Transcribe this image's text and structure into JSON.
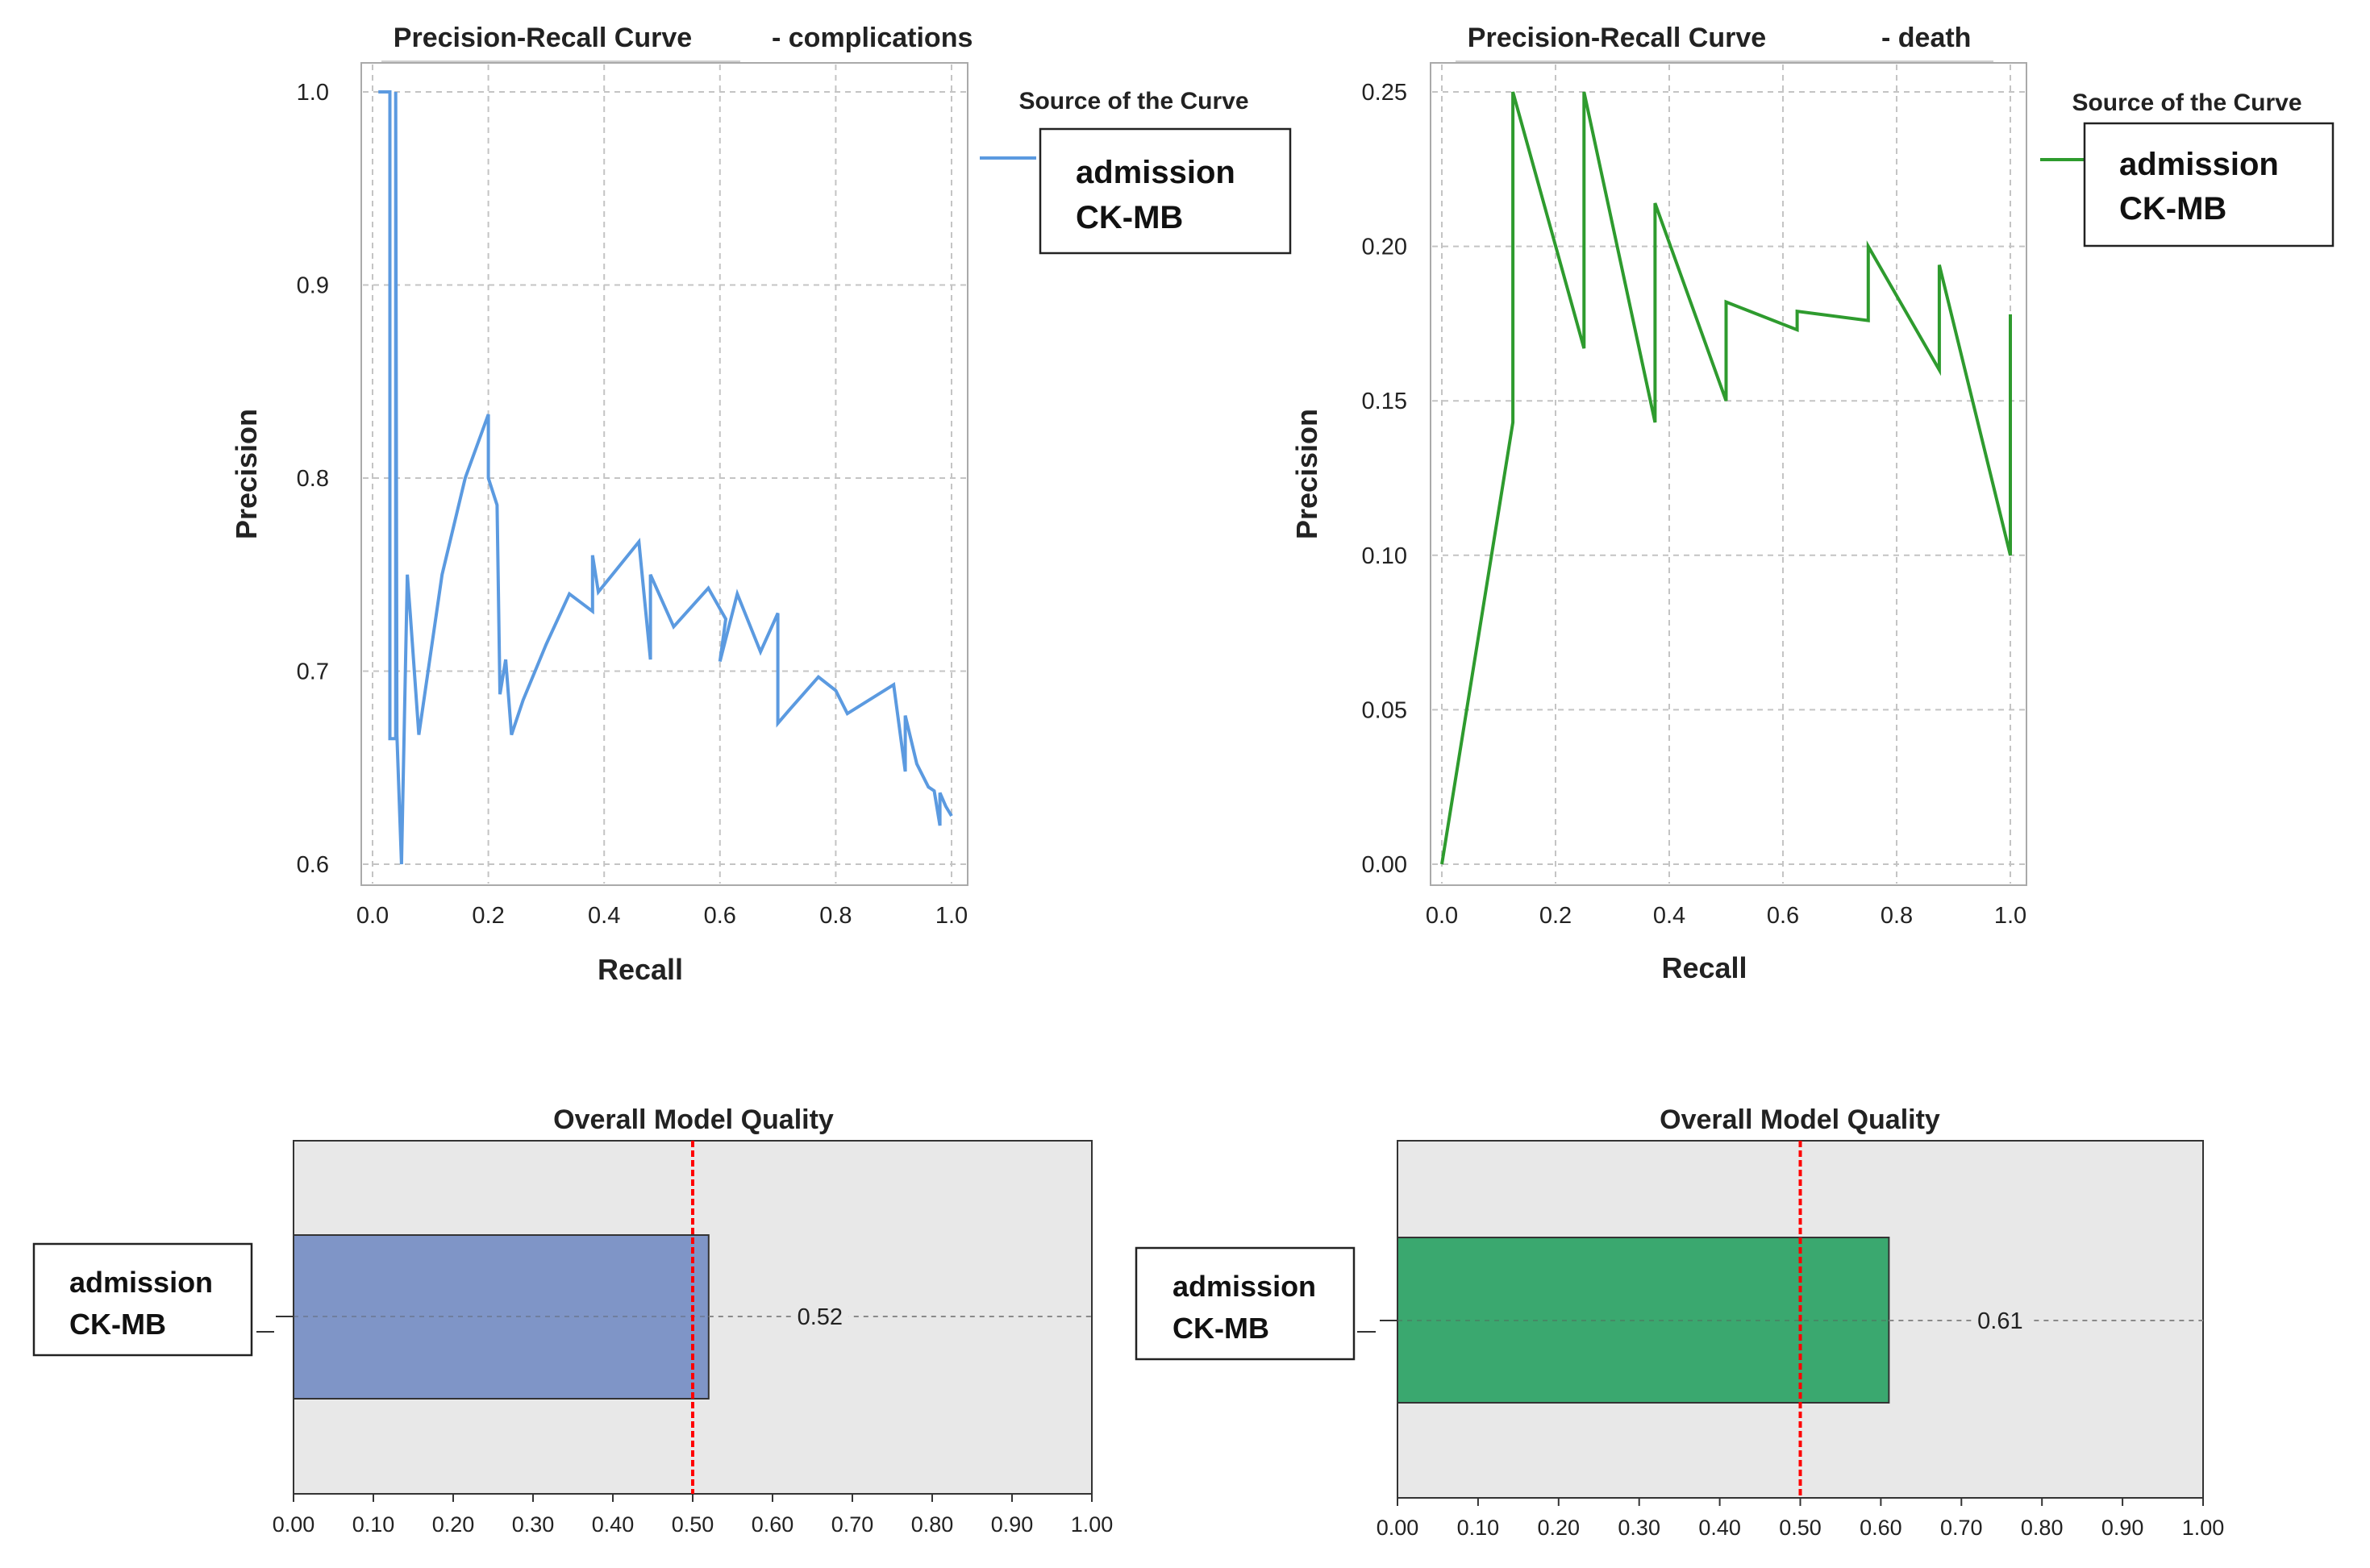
{
  "chart_data": [
    {
      "type": "line",
      "title": "Precision-Recall Curve",
      "subtitle": "- complications",
      "xlabel": "Recall",
      "ylabel": "Precision",
      "xlim": [
        0,
        1
      ],
      "ylim": [
        0.6,
        1
      ],
      "xticks": [
        "0.0",
        "0.2",
        "0.4",
        "0.6",
        "0.8",
        "1.0"
      ],
      "yticks": [
        "0.6",
        "0.7",
        "0.8",
        "0.9",
        "1.0"
      ],
      "grid": true,
      "legend": {
        "title": "Source of the Curve",
        "entries": [
          "admission",
          "CK-MB"
        ],
        "position": "top-right"
      },
      "color": "#5b9ae0",
      "series": [
        {
          "name": "admission CK-MB",
          "x": [
            0.01,
            0.03,
            0.03,
            0.04,
            0.04,
            0.042,
            0.05,
            0.06,
            0.065,
            0.08,
            0.12,
            0.16,
            0.2,
            0.2,
            0.215,
            0.22,
            0.23,
            0.24,
            0.26,
            0.3,
            0.34,
            0.38,
            0.38,
            0.39,
            0.46,
            0.48,
            0.48,
            0.52,
            0.58,
            0.61,
            0.6,
            0.63,
            0.67,
            0.7,
            0.7,
            0.72,
            0.77,
            0.8,
            0.82,
            0.9,
            0.92,
            0.92,
            0.94,
            0.96,
            0.97,
            0.98,
            0.98,
            0.99,
            1.0
          ],
          "y": [
            1.0,
            1.0,
            0.665,
            0.665,
            1.0,
            0.667,
            0.6,
            0.75,
            0.73,
            0.667,
            0.75,
            0.8,
            0.833,
            0.8,
            0.786,
            0.688,
            0.706,
            0.667,
            0.685,
            0.714,
            0.74,
            0.731,
            0.76,
            0.741,
            0.767,
            0.706,
            0.75,
            0.723,
            0.743,
            0.727,
            0.705,
            0.74,
            0.71,
            0.73,
            0.673,
            0.68,
            0.697,
            0.69,
            0.678,
            0.693,
            0.648,
            0.677,
            0.652,
            0.64,
            0.638,
            0.62,
            0.637,
            0.63,
            0.625
          ]
        }
      ]
    },
    {
      "type": "line",
      "title": "Precision-Recall Curve",
      "subtitle": "- death",
      "xlabel": "Recall",
      "ylabel": "Precision",
      "xlim": [
        0,
        1
      ],
      "ylim": [
        0,
        0.25
      ],
      "xticks": [
        "0.0",
        "0.2",
        "0.4",
        "0.6",
        "0.8",
        "1.0"
      ],
      "yticks": [
        "0.00",
        "0.05",
        "0.10",
        "0.15",
        "0.20",
        "0.25"
      ],
      "grid": true,
      "legend": {
        "title": "Source of the Curve",
        "entries": [
          "admission",
          "CK-MB"
        ],
        "position": "top-right"
      },
      "color": "#2e9b2e",
      "series": [
        {
          "name": "admission CK-MB",
          "x": [
            0.0,
            0.125,
            0.125,
            0.25,
            0.25,
            0.375,
            0.375,
            0.5,
            0.5,
            0.625,
            0.625,
            0.75,
            0.75,
            0.875,
            0.875,
            1.0,
            1.0
          ],
          "y": [
            0.0,
            0.143,
            0.25,
            0.167,
            0.25,
            0.143,
            0.214,
            0.15,
            0.182,
            0.173,
            0.179,
            0.176,
            0.2,
            0.16,
            0.194,
            0.1,
            0.178
          ]
        }
      ]
    },
    {
      "type": "bar",
      "orientation": "horizontal",
      "title": "Overall Model Quality",
      "categories": [
        "admission CK-MB"
      ],
      "category_label": [
        "admission",
        "CK-MB"
      ],
      "values": [
        0.52
      ],
      "value_label": "0.52",
      "reference_line": 0.5,
      "xlim": [
        0,
        1
      ],
      "xticks": [
        "0.00",
        "0.10",
        "0.20",
        "0.30",
        "0.40",
        "0.50",
        "0.60",
        "0.70",
        "0.80",
        "0.90",
        "1.00"
      ],
      "bar_color": "#7f95c7",
      "background": "#e8e8e8",
      "reference_color": "#ff0000"
    },
    {
      "type": "bar",
      "orientation": "horizontal",
      "title": "Overall Model Quality",
      "categories": [
        "admission CK-MB"
      ],
      "category_label": [
        "admission",
        "CK-MB"
      ],
      "values": [
        0.61
      ],
      "value_label": "0.61",
      "reference_line": 0.5,
      "xlim": [
        0,
        1
      ],
      "xticks": [
        "0.00",
        "0.10",
        "0.20",
        "0.30",
        "0.40",
        "0.50",
        "0.60",
        "0.70",
        "0.80",
        "0.90",
        "1.00"
      ],
      "bar_color": "#3aa86f",
      "background": "#e8e8e8",
      "reference_color": "#ff0000"
    }
  ]
}
